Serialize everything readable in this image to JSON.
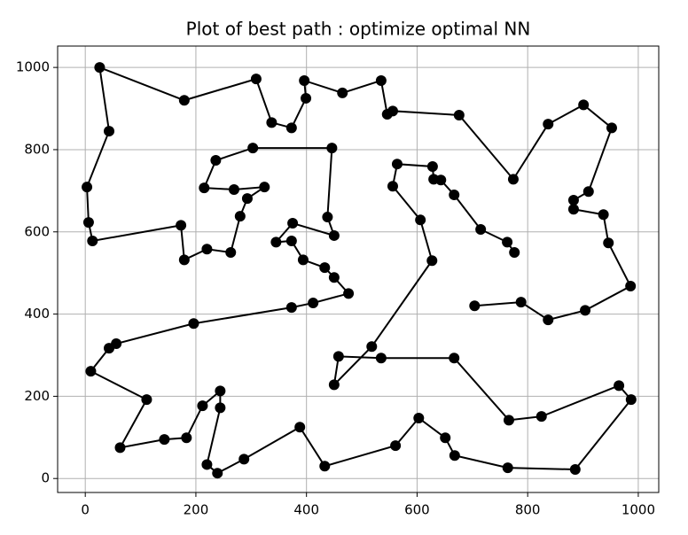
{
  "chart_data": {
    "type": "line",
    "title": "Plot of best path : optimize optimal NN",
    "x": [
      704,
      788,
      837,
      904,
      986,
      946,
      937,
      883,
      883,
      910,
      952,
      901,
      837,
      774,
      676,
      556,
      546,
      535,
      465,
      396,
      399,
      373,
      337,
      309,
      179,
      26,
      43,
      3,
      6,
      13,
      173,
      179,
      220,
      263,
      280,
      293,
      324,
      269,
      215,
      236,
      303,
      446,
      438,
      450,
      375,
      345,
      373,
      394,
      433,
      450,
      476,
      412,
      373,
      196,
      56,
      43,
      10,
      111,
      63,
      143,
      183,
      212,
      244,
      244,
      220,
      239,
      287,
      388,
      433,
      561,
      603,
      651,
      668,
      764,
      886,
      987,
      965,
      825,
      766,
      667,
      535,
      458,
      450,
      518,
      627,
      606,
      556,
      564,
      628,
      630,
      643,
      667,
      715,
      763,
      776
    ],
    "values": [
      420,
      429,
      386,
      409,
      468,
      573,
      642,
      655,
      677,
      698,
      853,
      909,
      862,
      728,
      884,
      894,
      886,
      968,
      938,
      968,
      925,
      853,
      866,
      972,
      920,
      1000,
      845,
      709,
      623,
      578,
      616,
      532,
      558,
      550,
      638,
      681,
      709,
      703,
      707,
      774,
      804,
      804,
      636,
      591,
      621,
      575,
      578,
      532,
      513,
      489,
      450,
      427,
      416,
      377,
      328,
      317,
      261,
      192,
      75,
      95,
      99,
      177,
      213,
      172,
      34,
      13,
      47,
      125,
      30,
      80,
      147,
      99,
      56,
      26,
      22,
      192,
      226,
      151,
      142,
      293,
      293,
      297,
      228,
      321,
      530,
      629,
      711,
      765,
      759,
      728,
      726,
      690,
      606,
      575,
      550
    ],
    "color": "#000000",
    "xlim": [
      -50,
      1037
    ],
    "ylim": [
      -34,
      1052
    ],
    "xticks": [
      0,
      200,
      400,
      600,
      800,
      1000
    ],
    "yticks": [
      0,
      200,
      400,
      600,
      800,
      1000
    ],
    "grid": true
  }
}
